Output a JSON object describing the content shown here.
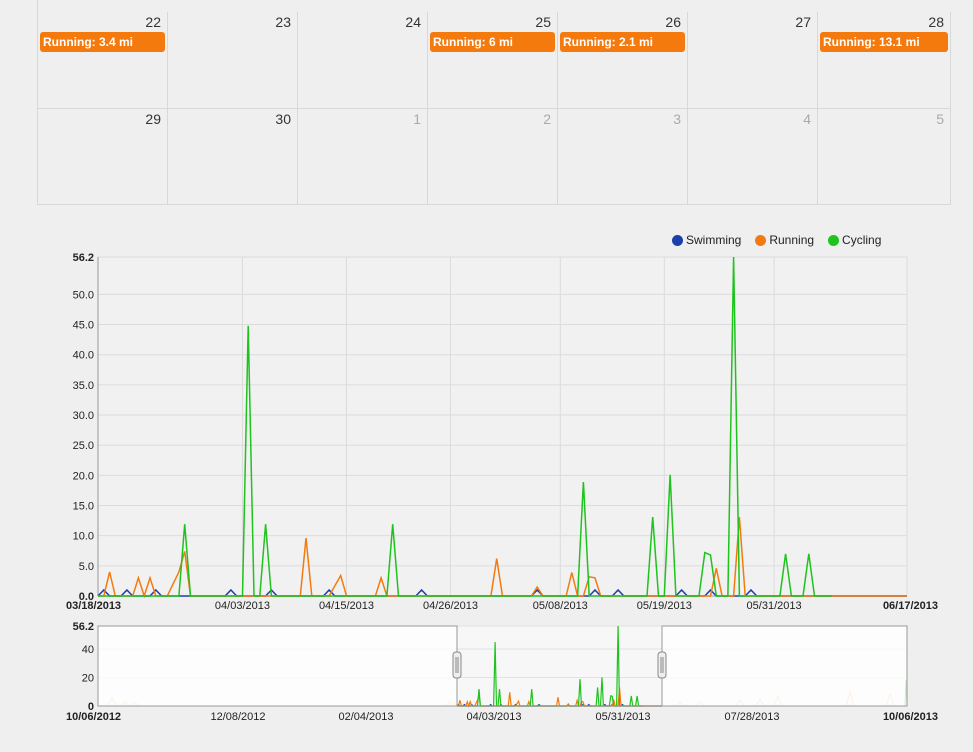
{
  "calendar": {
    "weeks": [
      {
        "days": [
          {
            "num": "22",
            "other": false,
            "event": "Running: 3.4 mi"
          },
          {
            "num": "23",
            "other": false,
            "event": ""
          },
          {
            "num": "24",
            "other": false,
            "event": ""
          },
          {
            "num": "25",
            "other": false,
            "event": "Running: 6 mi"
          },
          {
            "num": "26",
            "other": false,
            "event": "Running: 2.1 mi"
          },
          {
            "num": "27",
            "other": false,
            "event": ""
          },
          {
            "num": "28",
            "other": false,
            "event": "Running: 13.1 mi"
          }
        ]
      },
      {
        "days": [
          {
            "num": "29",
            "other": false,
            "event": ""
          },
          {
            "num": "30",
            "other": false,
            "event": ""
          },
          {
            "num": "1",
            "other": true,
            "event": ""
          },
          {
            "num": "2",
            "other": true,
            "event": ""
          },
          {
            "num": "3",
            "other": true,
            "event": ""
          },
          {
            "num": "4",
            "other": true,
            "event": ""
          },
          {
            "num": "5",
            "other": true,
            "event": ""
          }
        ]
      }
    ],
    "event_color": "#f47a0d"
  },
  "legend": [
    {
      "name": "Swimming",
      "color": "#1f3fa8"
    },
    {
      "name": "Running",
      "color": "#f47a0d"
    },
    {
      "name": "Cycling",
      "color": "#1ec31e"
    }
  ],
  "chart_data": [
    {
      "type": "line",
      "title": "",
      "xlabel": "",
      "ylabel": "",
      "x_range": [
        "03/18/2013",
        "06/17/2013"
      ],
      "ylim": [
        0,
        56.2
      ],
      "y_ticks": [
        "0.0",
        "5.0",
        "10.0",
        "15.0",
        "20.0",
        "25.0",
        "30.0",
        "35.0",
        "40.0",
        "45.0",
        "50.0",
        "56.2"
      ],
      "x_ticks": [
        "03/18/2013",
        "04/03/2013",
        "04/15/2013",
        "04/26/2013",
        "05/08/2013",
        "05/19/2013",
        "05/31/2013",
        "06/17/2013"
      ],
      "x_ticks_bold": [
        "03/18/2013",
        "06/17/2013"
      ],
      "grid": true,
      "legend_position": "top-right",
      "series": [
        {
          "name": "Swimming",
          "color": "#1f3fa8",
          "points": [
            [
              0,
              0
            ],
            [
              1,
              1
            ],
            [
              2,
              0
            ],
            [
              4,
              0
            ],
            [
              5,
              1
            ],
            [
              6,
              0
            ],
            [
              9,
              0
            ],
            [
              10,
              1
            ],
            [
              11,
              0
            ],
            [
              22,
              0
            ],
            [
              23,
              1
            ],
            [
              24,
              0
            ],
            [
              29,
              0
            ],
            [
              30,
              1
            ],
            [
              31,
              0
            ],
            [
              39,
              0
            ],
            [
              40,
              1
            ],
            [
              41,
              0
            ],
            [
              55,
              0
            ],
            [
              56,
              1
            ],
            [
              57,
              0
            ],
            [
              75,
              0
            ],
            [
              76,
              1
            ],
            [
              77,
              0
            ],
            [
              85,
              0
            ],
            [
              86,
              1
            ],
            [
              87,
              0
            ],
            [
              89,
              0
            ],
            [
              90,
              1
            ],
            [
              91,
              0
            ],
            [
              100,
              0
            ],
            [
              101,
              1
            ],
            [
              102,
              0
            ],
            [
              105,
              0
            ],
            [
              106,
              1
            ],
            [
              107,
              0
            ],
            [
              112,
              0
            ],
            [
              113,
              1
            ],
            [
              114,
              0
            ],
            [
              140,
              0
            ]
          ]
        },
        {
          "name": "Running",
          "color": "#f47a0d",
          "points": [
            [
              0,
              0
            ],
            [
              1,
              0
            ],
            [
              2,
              4
            ],
            [
              3,
              0
            ],
            [
              6,
              0
            ],
            [
              7,
              3
            ],
            [
              8,
              0
            ],
            [
              9,
              3
            ],
            [
              10,
              0
            ],
            [
              12,
              0
            ],
            [
              14,
              4
            ],
            [
              15,
              7.4
            ],
            [
              16,
              0
            ],
            [
              35,
              0
            ],
            [
              36,
              9.6
            ],
            [
              37,
              0
            ],
            [
              40,
              0
            ],
            [
              42,
              3.4
            ],
            [
              43,
              0
            ],
            [
              48,
              0
            ],
            [
              49,
              3
            ],
            [
              50,
              0
            ],
            [
              68,
              0
            ],
            [
              69,
              6.2
            ],
            [
              70,
              0
            ],
            [
              75,
              0
            ],
            [
              76,
              1.5
            ],
            [
              77,
              0
            ],
            [
              81,
              0
            ],
            [
              82,
              3.9
            ],
            [
              83,
              0
            ],
            [
              84,
              0
            ],
            [
              85,
              3.2
            ],
            [
              86,
              3
            ],
            [
              87,
              0
            ],
            [
              106,
              0
            ],
            [
              107,
              4.6
            ],
            [
              108,
              0
            ],
            [
              110,
              0
            ],
            [
              111,
              13.1
            ],
            [
              112,
              0
            ],
            [
              140,
              0
            ]
          ]
        },
        {
          "name": "Cycling",
          "color": "#1ec31e",
          "points": [
            [
              0,
              0
            ],
            [
              14,
              0
            ],
            [
              15,
              11.9
            ],
            [
              16,
              0
            ],
            [
              25,
              0
            ],
            [
              26,
              44.8
            ],
            [
              27,
              0
            ],
            [
              28,
              0
            ],
            [
              29,
              11.9
            ],
            [
              30,
              0
            ],
            [
              50,
              0
            ],
            [
              51,
              11.9
            ],
            [
              52,
              0
            ],
            [
              83,
              0
            ],
            [
              84,
              18.9
            ],
            [
              85,
              0
            ],
            [
              95,
              0
            ],
            [
              96,
              13.1
            ],
            [
              97,
              0
            ],
            [
              98,
              0
            ],
            [
              99,
              20.1
            ],
            [
              100,
              0
            ],
            [
              104,
              0
            ],
            [
              105,
              7.2
            ],
            [
              106,
              6.8
            ],
            [
              107,
              0
            ],
            [
              109,
              0
            ],
            [
              110,
              56.2
            ],
            [
              111,
              0
            ],
            [
              118,
              0
            ],
            [
              119,
              7
            ],
            [
              120,
              0
            ],
            [
              122,
              0
            ],
            [
              123,
              7
            ],
            [
              124,
              0
            ],
            [
              127,
              0
            ]
          ]
        }
      ]
    },
    {
      "type": "area",
      "title": "",
      "ylim": [
        0,
        56.2
      ],
      "y_ticks": [
        "0",
        "20",
        "40",
        "56.2"
      ],
      "x_ticks": [
        "10/06/2012",
        "12/08/2012",
        "02/04/2013",
        "04/03/2013",
        "05/31/2013",
        "07/28/2013",
        "10/06/2013"
      ],
      "x_ticks_bold": [
        "10/06/2012",
        "10/06/2013"
      ],
      "selected_range": [
        "03/18/2013",
        "06/17/2013"
      ],
      "note": ""
    }
  ]
}
